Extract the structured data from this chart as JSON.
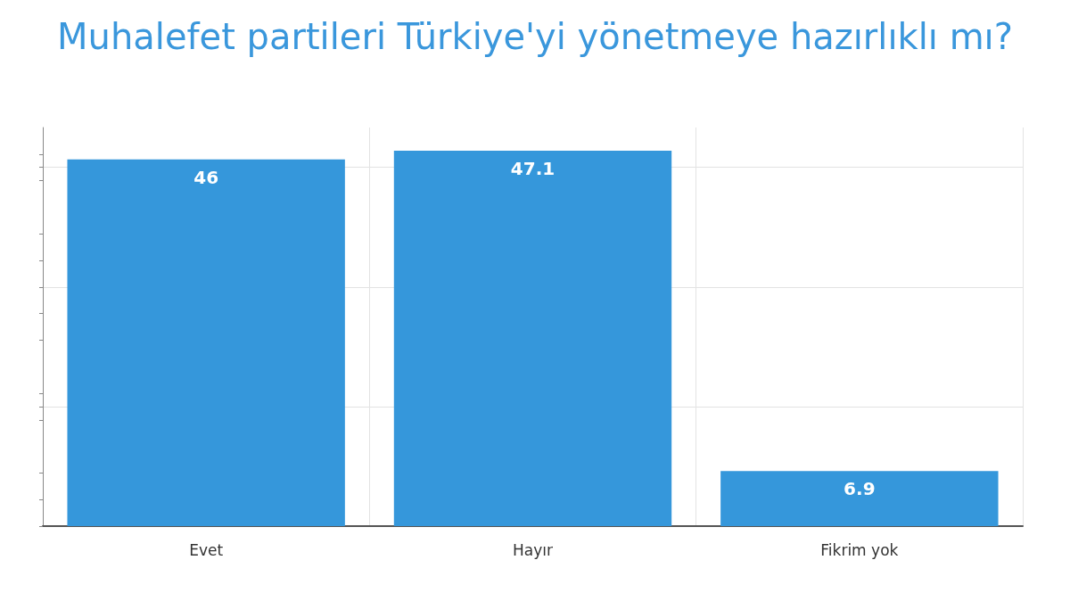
{
  "chart_data": {
    "type": "bar",
    "title": "Muhalefet partileri Türkiye'yi yönetmeye hazırlıklı mı?",
    "categories": [
      "Evet",
      "Hayır",
      "Fikrim yok"
    ],
    "values": [
      46,
      47.1,
      6.9
    ],
    "color": "#3597db",
    "ylim": [
      0,
      50
    ],
    "yticks": [
      {
        "value": 0,
        "label": null
      },
      {
        "value": 15,
        "label": null
      },
      {
        "value": 30,
        "label": null
      },
      {
        "value": 45,
        "label": null
      }
    ],
    "tick_labels": "x",
    "grid": true,
    "data_labels": true
  }
}
